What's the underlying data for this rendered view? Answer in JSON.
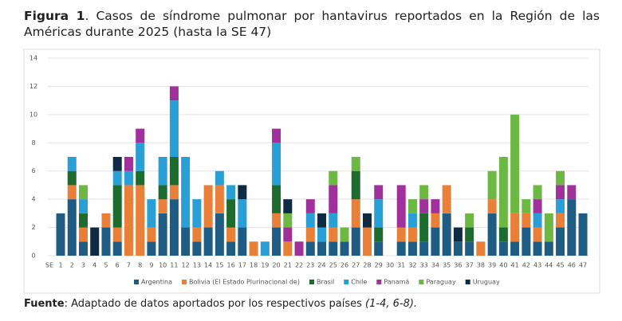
{
  "chart_data": {
    "type": "bar",
    "stacked": true,
    "figure_label": "Figura 1",
    "title": ". Casos de síndrome pulmonar por hantavirus reportados en la Región de las Américas durante 2025 (hasta la SE 47)",
    "x_label": "SE",
    "categories": [
      "1",
      "2",
      "3",
      "4",
      "5",
      "6",
      "7",
      "8",
      "9",
      "10",
      "11",
      "12",
      "13",
      "14",
      "15",
      "16",
      "17",
      "18",
      "19",
      "20",
      "21",
      "22",
      "23",
      "24",
      "25",
      "26",
      "27",
      "28",
      "29",
      "30",
      "31",
      "32",
      "33",
      "34",
      "35",
      "36",
      "37",
      "38",
      "39",
      "40",
      "41",
      "42",
      "43",
      "44",
      "45",
      "46",
      "47"
    ],
    "series": [
      {
        "name": "Argentina",
        "color": "#1f5c84",
        "values": [
          3,
          4,
          1,
          0,
          2,
          1,
          0,
          0,
          1,
          3,
          4,
          2,
          1,
          2,
          3,
          1,
          2,
          0,
          0,
          2,
          0,
          0,
          1,
          1,
          1,
          1,
          2,
          0,
          1,
          0,
          1,
          1,
          1,
          2,
          3,
          1,
          1,
          0,
          3,
          1,
          1,
          2,
          1,
          1,
          2,
          4,
          3
        ]
      },
      {
        "name": "Bolivia (El Estado Plurinacional de)",
        "color": "#e8803a",
        "values": [
          0,
          1,
          1,
          0,
          1,
          1,
          5,
          5,
          1,
          1,
          1,
          0,
          1,
          3,
          2,
          1,
          0,
          1,
          0,
          1,
          1,
          0,
          1,
          0,
          1,
          0,
          2,
          2,
          0,
          0,
          1,
          1,
          0,
          1,
          2,
          0,
          0,
          1,
          1,
          0,
          2,
          1,
          1,
          0,
          1,
          0,
          0
        ]
      },
      {
        "name": "Brasil",
        "color": "#1e6b2f",
        "values": [
          0,
          1,
          1,
          0,
          0,
          3,
          0,
          1,
          0,
          1,
          2,
          0,
          0,
          0,
          0,
          2,
          0,
          0,
          0,
          2,
          0,
          0,
          0,
          0,
          0,
          0,
          2,
          0,
          1,
          0,
          0,
          0,
          2,
          0,
          0,
          0,
          1,
          0,
          0,
          1,
          0,
          0,
          0,
          0,
          0,
          0,
          0
        ]
      },
      {
        "name": "Chile",
        "color": "#2a9fd6",
        "values": [
          0,
          1,
          1,
          0,
          0,
          1,
          1,
          2,
          2,
          2,
          4,
          5,
          2,
          0,
          1,
          1,
          2,
          0,
          1,
          3,
          0,
          0,
          1,
          1,
          1,
          0,
          0,
          0,
          2,
          0,
          0,
          1,
          0,
          0,
          0,
          0,
          0,
          0,
          0,
          0,
          0,
          0,
          1,
          0,
          1,
          0,
          0
        ]
      },
      {
        "name": "Panamá",
        "color": "#a0309a",
        "values": [
          0,
          0,
          0,
          0,
          0,
          0,
          1,
          1,
          0,
          0,
          1,
          0,
          0,
          0,
          0,
          0,
          0,
          0,
          0,
          1,
          1,
          1,
          1,
          0,
          2,
          0,
          0,
          0,
          1,
          0,
          3,
          0,
          1,
          1,
          0,
          0,
          0,
          0,
          0,
          0,
          0,
          0,
          1,
          0,
          1,
          1,
          0
        ]
      },
      {
        "name": "Paraguay",
        "color": "#6cb843",
        "values": [
          0,
          0,
          1,
          0,
          0,
          0,
          0,
          0,
          0,
          0,
          0,
          0,
          0,
          0,
          0,
          0,
          0,
          0,
          0,
          0,
          1,
          0,
          0,
          0,
          1,
          1,
          1,
          0,
          0,
          0,
          0,
          1,
          1,
          0,
          0,
          0,
          1,
          0,
          2,
          5,
          7,
          1,
          1,
          2,
          1,
          0,
          0
        ]
      },
      {
        "name": "Uruguay",
        "color": "#0f2a45",
        "values": [
          0,
          0,
          0,
          2,
          0,
          1,
          0,
          0,
          0,
          0,
          0,
          0,
          0,
          0,
          0,
          0,
          1,
          0,
          0,
          0,
          1,
          0,
          0,
          1,
          0,
          0,
          0,
          1,
          0,
          0,
          0,
          0,
          0,
          0,
          0,
          1,
          0,
          0,
          0,
          0,
          0,
          0,
          0,
          0,
          0,
          0,
          0
        ]
      }
    ],
    "ylim": [
      0,
      14
    ],
    "yticks": [
      0,
      2,
      4,
      6,
      8,
      10,
      12,
      14
    ],
    "grid": true,
    "legend": "bottom",
    "source_label": "Fuente",
    "source": ": Adaptado de datos aportados por los respectivos países ",
    "source_refs": "(1-4, 6-8)."
  }
}
